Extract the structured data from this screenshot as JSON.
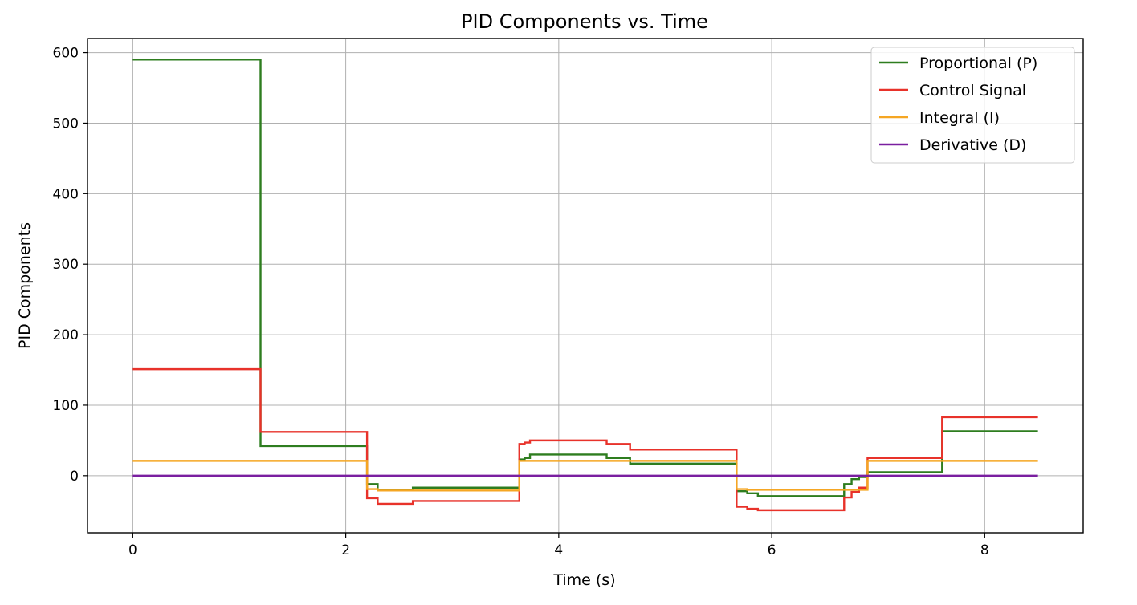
{
  "chart_data": {
    "type": "line",
    "step": "post",
    "title": "PID Components vs. Time",
    "xlabel": "Time (s)",
    "ylabel": "PID Components",
    "xlim": [
      -0.425,
      8.925
    ],
    "ylim": [
      -81,
      620
    ],
    "xticks": [
      0,
      2,
      4,
      6,
      8
    ],
    "yticks": [
      0,
      100,
      200,
      300,
      400,
      500,
      600
    ],
    "grid": true,
    "legend_position": "top-right",
    "series": [
      {
        "name": "Proportional (P)",
        "color": "#2e7d1f",
        "x": [
          0,
          1.2,
          2.2,
          2.3,
          2.63,
          3.63,
          3.68,
          3.73,
          4.45,
          4.67,
          5.67,
          5.77,
          5.87,
          6.68,
          6.75,
          6.82,
          6.9,
          7.6,
          8.5
        ],
        "y": [
          590,
          42,
          -12,
          -20,
          -17,
          23,
          25,
          30,
          25,
          17,
          -22,
          -25,
          -29,
          -12,
          -5,
          -2,
          5,
          63,
          63
        ]
      },
      {
        "name": "Control Signal",
        "color": "#e8322a",
        "x": [
          0,
          1.2,
          2.2,
          2.3,
          2.63,
          3.63,
          3.68,
          3.73,
          4.45,
          4.67,
          5.67,
          5.77,
          5.87,
          6.68,
          6.75,
          6.82,
          6.9,
          7.6,
          8.5
        ],
        "y": [
          151,
          62,
          -32,
          -40,
          -36,
          45,
          47,
          50,
          45,
          37,
          -44,
          -47,
          -49,
          -31,
          -23,
          -17,
          25,
          83,
          83
        ]
      },
      {
        "name": "Integral (I)",
        "color": "#f5a623",
        "x": [
          0,
          2.2,
          2.3,
          3.63,
          5.67,
          5.77,
          6.9,
          8.5
        ],
        "y": [
          21,
          -19,
          -21,
          21,
          -19,
          -20,
          21,
          21
        ]
      },
      {
        "name": "Derivative (D)",
        "color": "#7a1fa0",
        "x": [
          0,
          8.5
        ],
        "y": [
          0,
          0
        ]
      }
    ]
  }
}
